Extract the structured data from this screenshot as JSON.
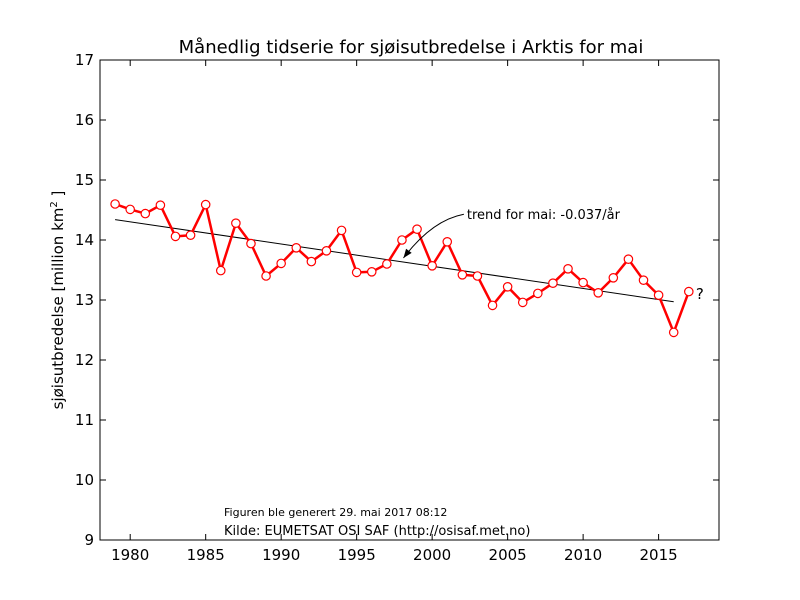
{
  "chart_data": {
    "type": "line",
    "title": "Månedlig tidserie for sjøisutbredelse i Arktis for mai",
    "xlabel": "",
    "ylabel": "sjøisutbredelse [million km²]",
    "ylabel_main": "sjøisutbredelse [million km",
    "ylabel_sup": "2",
    "ylabel_end": " ]",
    "xlim": [
      1978,
      2019
    ],
    "ylim": [
      9,
      17
    ],
    "x_ticks": [
      1980,
      1985,
      1990,
      1995,
      2000,
      2005,
      2010,
      2015
    ],
    "y_ticks": [
      9,
      10,
      11,
      12,
      13,
      14,
      15,
      16,
      17
    ],
    "grid": false,
    "series": [
      {
        "x": [
          1979,
          1980,
          1981,
          1982,
          1983,
          1984,
          1985,
          1986,
          1987,
          1988,
          1989,
          1990,
          1991,
          1992,
          1993,
          1994,
          1995,
          1996,
          1997,
          1998,
          1999,
          2000,
          2001,
          2002,
          2003,
          2004,
          2005,
          2006,
          2007,
          2008,
          2009,
          2010,
          2011,
          2012,
          2013,
          2014,
          2015,
          2016,
          2017
        ],
        "values": [
          14.6,
          14.51,
          14.44,
          14.58,
          14.06,
          14.08,
          14.59,
          13.49,
          14.28,
          13.94,
          13.4,
          13.61,
          13.87,
          13.64,
          13.82,
          14.16,
          13.46,
          13.47,
          13.6,
          14.0,
          14.18,
          13.57,
          13.97,
          13.42,
          13.4,
          12.91,
          13.22,
          12.96,
          13.11,
          13.28,
          13.52,
          13.29,
          13.12,
          13.37,
          13.68,
          13.33,
          13.08,
          12.46,
          13.14
        ],
        "color": "#ff0000"
      }
    ],
    "trend": {
      "x_start": 1979,
      "x_end": 2016,
      "y_start": 14.34,
      "y_end": 12.97,
      "color": "#000000"
    },
    "annotation": {
      "text": "trend for mai: -0.037/år",
      "text_x": 2002.3,
      "text_y": 14.43,
      "arrow_to_x": 1998.1,
      "arrow_to_y": 13.7
    },
    "uncertain_marker": {
      "text": "?",
      "x": 2017.2,
      "y": 13.1
    },
    "generated_note": "Figuren ble generert 29. mai 2017 08:12",
    "source_note": "Kilde: EUMETSAT OSI SAF (http://osisaf.met.no)"
  }
}
